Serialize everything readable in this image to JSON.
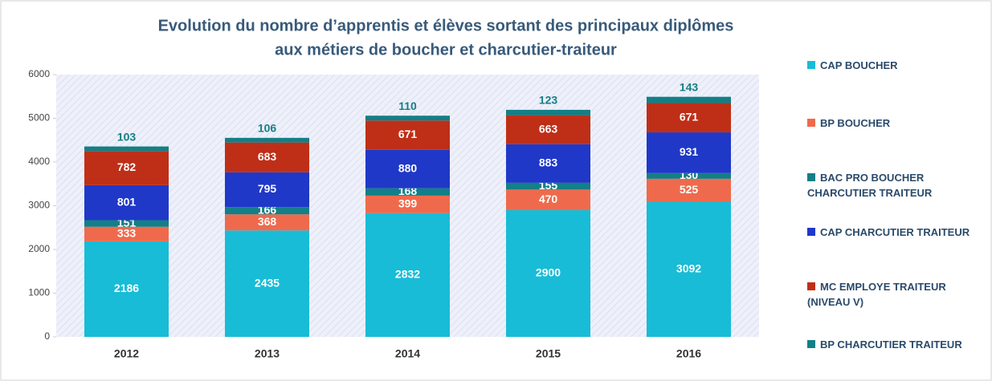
{
  "chart_data": {
    "type": "stacked_bar",
    "title": [
      "Evolution du nombre d’apprentis et élèves sortant des principaux diplômes",
      "aux métiers de boucher et charcutier-traiteur"
    ],
    "categories": [
      "2012",
      "2013",
      "2014",
      "2015",
      "2016"
    ],
    "series": [
      {
        "name": "CAP BOUCHER",
        "color": "#18bcd6",
        "values": [
          2186,
          2435,
          2832,
          2900,
          3092
        ]
      },
      {
        "name": "BP BOUCHER",
        "color": "#ef6a4c",
        "values": [
          333,
          368,
          399,
          470,
          525
        ]
      },
      {
        "name": "BAC PRO BOUCHER CHARCUTIER TRAITEUR",
        "color": "#137f86",
        "values": [
          151,
          166,
          168,
          155,
          130
        ]
      },
      {
        "name": "CAP CHARCUTIER TRAITEUR",
        "color": "#1f38c8",
        "values": [
          801,
          795,
          880,
          883,
          931
        ]
      },
      {
        "name": "MC EMPLOYE TRAITEUR (NIVEAU V)",
        "color": "#bf2f17",
        "values": [
          782,
          683,
          671,
          663,
          671
        ]
      },
      {
        "name": "BP CHARCUTIER TRAITEUR",
        "color": "#137f86",
        "values": [
          103,
          106,
          110,
          123,
          143
        ]
      }
    ],
    "ylim": [
      0,
      6000
    ],
    "yticks": [
      0,
      1000,
      2000,
      3000,
      4000,
      5000,
      6000
    ],
    "grid": false,
    "legend": "right"
  }
}
